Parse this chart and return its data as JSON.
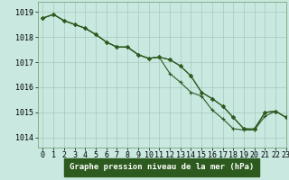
{
  "title": "Graphe pression niveau de la mer (hPa)",
  "xlim": [
    -0.5,
    23
  ],
  "ylim": [
    1013.6,
    1019.4
  ],
  "yticks": [
    1014,
    1015,
    1016,
    1017,
    1018,
    1019
  ],
  "xticks": [
    0,
    1,
    2,
    3,
    4,
    5,
    6,
    7,
    8,
    9,
    10,
    11,
    12,
    13,
    14,
    15,
    16,
    17,
    18,
    19,
    20,
    21,
    22,
    23
  ],
  "bg_color": "#c8e8e0",
  "grid_color": "#a8c8c0",
  "line_color": "#2d5a1e",
  "line1": [
    1018.75,
    1018.9,
    1018.65,
    1018.5,
    1018.35,
    1018.1,
    1017.8,
    1017.6,
    1017.6,
    1017.3,
    1017.15,
    1017.2,
    1017.1,
    1016.85,
    1016.45,
    1015.8,
    1015.55,
    1015.25,
    1014.8,
    1014.35,
    1014.3,
    1015.0,
    1015.05,
    1014.8
  ],
  "line2": [
    1018.75,
    1018.9,
    1018.65,
    1018.5,
    1018.35,
    1018.1,
    1017.8,
    1017.6,
    1017.6,
    1017.3,
    1017.15,
    1017.2,
    1016.55,
    1016.2,
    1015.8,
    1015.65,
    1015.1,
    1014.75,
    1014.35,
    1014.3,
    1014.3,
    1014.85,
    1015.05,
    1014.8
  ],
  "line3": [
    1018.75,
    1018.9,
    1018.65,
    1018.5,
    1018.35,
    1018.1,
    1017.8,
    1017.6,
    1017.6,
    1017.3,
    1017.15,
    1017.2,
    1017.1,
    1016.85,
    1016.45,
    1015.8,
    1015.55,
    1015.25,
    1014.8,
    1014.35,
    1014.35,
    1015.0,
    1015.05,
    1014.8
  ],
  "xlabel_color": "#2d5a1e",
  "xlabel_bg": "#2d5a1e",
  "tick_fontsize": 6,
  "xlabel_fontsize": 6.5
}
